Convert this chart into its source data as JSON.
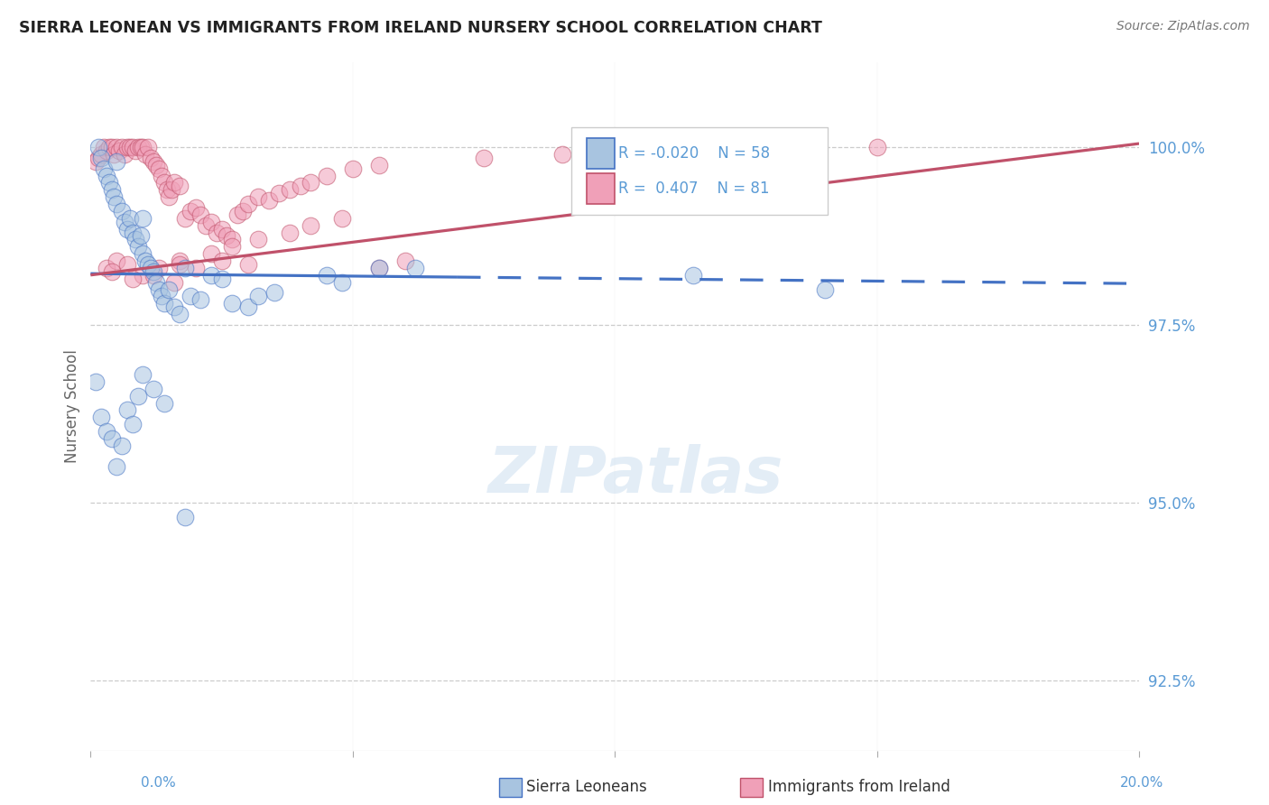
{
  "title": "SIERRA LEONEAN VS IMMIGRANTS FROM IRELAND NURSERY SCHOOL CORRELATION CHART",
  "source": "Source: ZipAtlas.com",
  "ylabel": "Nursery School",
  "y_ticks": [
    92.5,
    95.0,
    97.5,
    100.0
  ],
  "y_tick_labels": [
    "92.5%",
    "95.0%",
    "97.5%",
    "100.0%"
  ],
  "x_min": 0.0,
  "x_max": 20.0,
  "y_min": 91.5,
  "y_max": 101.2,
  "legend_r_blue": "-0.020",
  "legend_n_blue": "58",
  "legend_r_pink": "0.407",
  "legend_n_pink": "81",
  "blue_color": "#a8c4e0",
  "pink_color": "#f0a0b8",
  "blue_line_color": "#4472C4",
  "pink_line_color": "#C0516A",
  "blue_trend_y0": 98.22,
  "blue_trend_y1": 98.08,
  "blue_solid_end_x": 7.0,
  "pink_trend_y0": 98.2,
  "pink_trend_y1": 100.05,
  "blue_scatter_x": [
    0.15,
    0.2,
    0.25,
    0.3,
    0.35,
    0.4,
    0.45,
    0.5,
    0.5,
    0.6,
    0.65,
    0.7,
    0.75,
    0.8,
    0.85,
    0.9,
    0.95,
    1.0,
    1.0,
    1.05,
    1.1,
    1.15,
    1.2,
    1.25,
    1.3,
    1.35,
    1.4,
    1.5,
    1.6,
    1.7,
    1.9,
    2.1,
    2.3,
    2.5,
    2.7,
    3.0,
    3.2,
    3.5,
    4.5,
    4.8,
    5.5,
    6.2,
    1.8,
    11.5,
    14.0,
    0.1,
    0.2,
    0.3,
    0.4,
    0.5,
    0.6,
    0.7,
    0.8,
    0.9,
    1.0,
    1.2,
    1.4,
    1.8
  ],
  "blue_scatter_y": [
    100.0,
    99.85,
    99.7,
    99.6,
    99.5,
    99.4,
    99.3,
    99.2,
    99.8,
    99.1,
    98.95,
    98.85,
    99.0,
    98.8,
    98.7,
    98.6,
    98.75,
    98.5,
    99.0,
    98.4,
    98.35,
    98.3,
    98.25,
    98.1,
    98.0,
    97.9,
    97.8,
    98.0,
    97.75,
    97.65,
    97.9,
    97.85,
    98.2,
    98.15,
    97.8,
    97.75,
    97.9,
    97.95,
    98.2,
    98.1,
    98.3,
    98.3,
    98.3,
    98.2,
    98.0,
    96.7,
    96.2,
    96.0,
    95.9,
    95.5,
    95.8,
    96.3,
    96.1,
    96.5,
    96.8,
    96.6,
    96.4,
    94.8
  ],
  "pink_scatter_x": [
    0.1,
    0.15,
    0.2,
    0.25,
    0.3,
    0.35,
    0.4,
    0.45,
    0.5,
    0.55,
    0.6,
    0.65,
    0.7,
    0.75,
    0.8,
    0.85,
    0.9,
    0.95,
    1.0,
    1.05,
    1.1,
    1.15,
    1.2,
    1.25,
    1.3,
    1.35,
    1.4,
    1.45,
    1.5,
    1.55,
    1.6,
    1.7,
    1.8,
    1.9,
    2.0,
    2.1,
    2.2,
    2.3,
    2.4,
    2.5,
    2.6,
    2.7,
    2.8,
    2.9,
    3.0,
    3.2,
    3.4,
    3.6,
    3.8,
    4.0,
    4.2,
    4.5,
    5.0,
    5.5,
    1.7,
    2.3,
    2.7,
    3.2,
    3.8,
    4.2,
    4.8,
    5.5,
    6.0,
    7.5,
    9.0,
    11.0,
    12.5,
    15.0,
    0.3,
    0.5,
    0.7,
    1.0,
    1.3,
    1.7,
    2.0,
    2.5,
    3.0,
    0.4,
    0.8,
    1.2,
    1.6
  ],
  "pink_scatter_y": [
    99.8,
    99.85,
    99.9,
    100.0,
    99.95,
    100.0,
    100.0,
    99.9,
    100.0,
    99.95,
    100.0,
    99.9,
    100.0,
    100.0,
    100.0,
    99.95,
    100.0,
    100.0,
    100.0,
    99.9,
    100.0,
    99.85,
    99.8,
    99.75,
    99.7,
    99.6,
    99.5,
    99.4,
    99.3,
    99.4,
    99.5,
    99.45,
    99.0,
    99.1,
    99.15,
    99.05,
    98.9,
    98.95,
    98.8,
    98.85,
    98.75,
    98.7,
    99.05,
    99.1,
    99.2,
    99.3,
    99.25,
    99.35,
    99.4,
    99.45,
    99.5,
    99.6,
    99.7,
    99.75,
    98.4,
    98.5,
    98.6,
    98.7,
    98.8,
    98.9,
    99.0,
    98.3,
    98.4,
    99.85,
    99.9,
    99.95,
    100.0,
    100.0,
    98.3,
    98.4,
    98.35,
    98.2,
    98.3,
    98.35,
    98.3,
    98.4,
    98.35,
    98.25,
    98.15,
    98.2,
    98.1
  ]
}
